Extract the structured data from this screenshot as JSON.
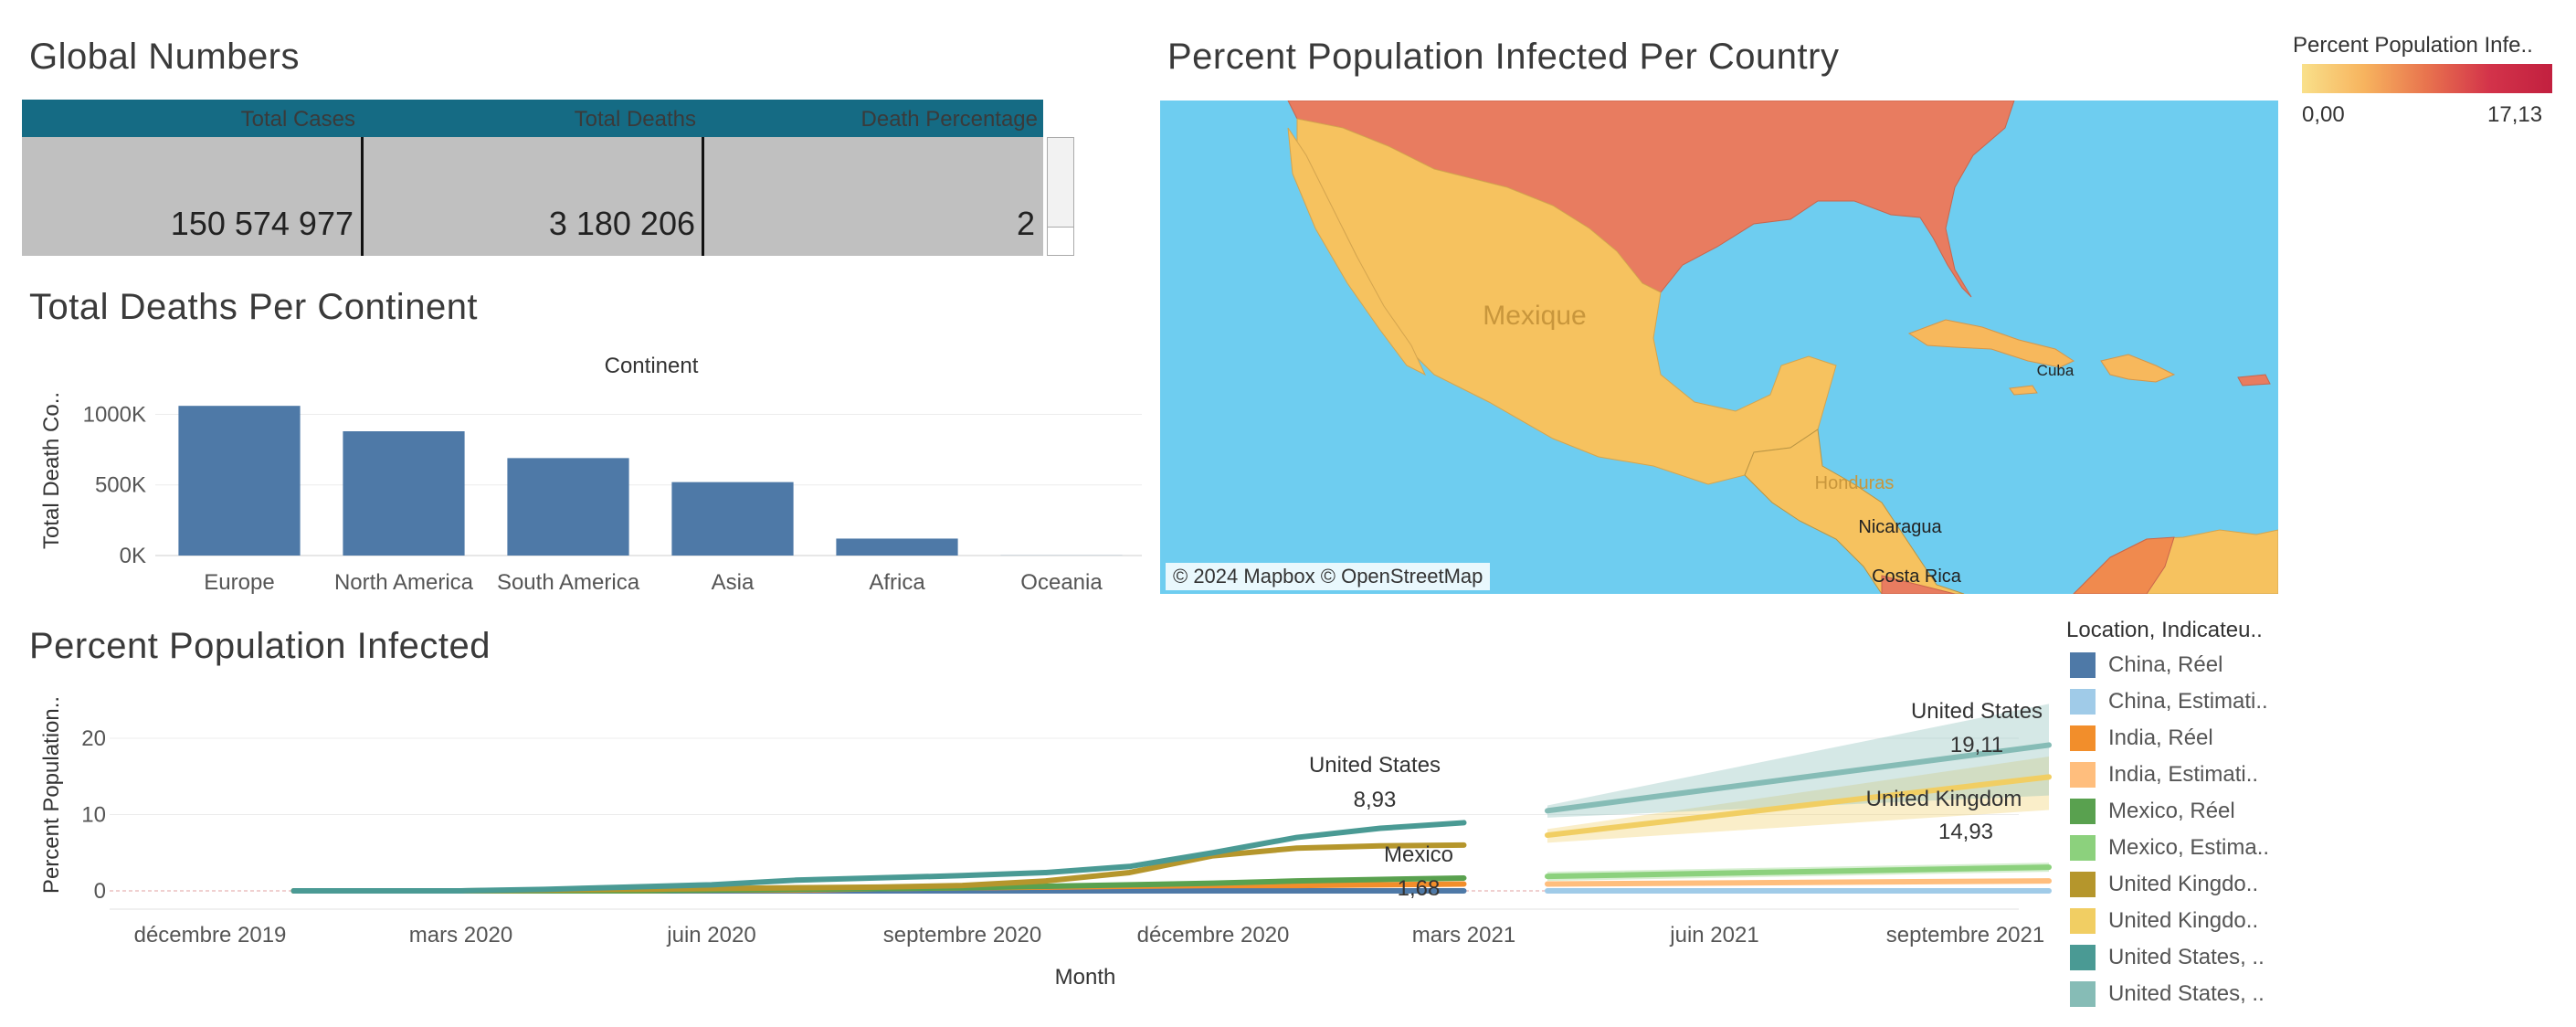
{
  "global_numbers": {
    "title": "Global Numbers",
    "headers": [
      "Total Cases",
      "Total Deaths",
      "Death Percentage"
    ],
    "values": [
      "150 574 977",
      "3 180 206",
      "2"
    ]
  },
  "map": {
    "title": "Percent Population Infected Per Country",
    "credit": "© 2024 Mapbox © OpenStreetMap",
    "labels": {
      "mexico": "Mexique",
      "cuba": "Cuba",
      "honduras": "Honduras",
      "nicaragua": "Nicaragua",
      "costa_rica": "Costa Rica"
    },
    "colors": {
      "water": "#6ecdf0",
      "usa": "#e87c60",
      "mexico": "#f6c25f",
      "caribbean": "#f7b85c",
      "venezuela": "#f08a4e"
    }
  },
  "color_legend": {
    "title": "Percent Population Infe..",
    "min": "0,00",
    "max": "17,13"
  },
  "chart_data": [
    {
      "type": "bar",
      "title": "Total Deaths Per Continent",
      "header": "Continent",
      "categories": [
        "Europe",
        "North America",
        "South America",
        "Asia",
        "Africa",
        "Oceania"
      ],
      "values": [
        1060000,
        880000,
        690000,
        520000,
        120000,
        1000
      ],
      "ylabel": "Total Death Co..",
      "yticks": [
        "1000K",
        "500K",
        "0K"
      ],
      "ytick_values": [
        1000000,
        500000,
        0
      ],
      "ylim": [
        0,
        1100000
      ],
      "color": "#4e79a7"
    },
    {
      "type": "line",
      "title": "Percent Population Infected",
      "xlabel": "Month",
      "ylabel": "Percent Population..",
      "yticks": [
        "20",
        "10",
        "0"
      ],
      "ytick_values": [
        20,
        10,
        0
      ],
      "ylim": [
        -2,
        25
      ],
      "xticks": [
        "décembre 2019",
        "mars 2020",
        "juin 2020",
        "septembre 2020",
        "décembre 2020",
        "mars 2021",
        "juin 2021",
        "septembre 2021"
      ],
      "xtick_months": [
        0,
        3,
        6,
        9,
        12,
        15,
        18,
        21
      ],
      "actual_months": [
        1,
        2,
        3,
        4,
        5,
        6,
        7,
        8,
        9,
        10,
        11,
        12,
        13,
        14,
        15
      ],
      "series": [
        {
          "name": "China, Réel",
          "color": "#4e79a7",
          "values": [
            0,
            0,
            0,
            0,
            0,
            0,
            0,
            0,
            0,
            0,
            0,
            0,
            0,
            0,
            0
          ]
        },
        {
          "name": "India, Réel",
          "color": "#f28e2b",
          "values": [
            0,
            0,
            0,
            0,
            0,
            0.1,
            0.1,
            0.3,
            0.4,
            0.5,
            0.6,
            0.7,
            0.7,
            0.8,
            0.9
          ]
        },
        {
          "name": "Mexico, Réel",
          "color": "#59a14f",
          "values": [
            0,
            0,
            0,
            0,
            0,
            0.1,
            0.2,
            0.3,
            0.4,
            0.6,
            0.8,
            1.0,
            1.3,
            1.5,
            1.68
          ]
        },
        {
          "name": "United Kingdo..",
          "color": "#b5962c",
          "values": [
            0,
            0,
            0,
            0.1,
            0.2,
            0.3,
            0.4,
            0.5,
            0.7,
            1.3,
            2.4,
            4.6,
            5.6,
            5.9,
            6.0
          ]
        },
        {
          "name": "United States, ..",
          "color": "#4a9a94",
          "values": [
            0,
            0,
            0,
            0.2,
            0.5,
            0.8,
            1.4,
            1.7,
            2.0,
            2.4,
            3.2,
            5.0,
            7.0,
            8.2,
            8.93
          ]
        }
      ],
      "forecast_months": [
        16,
        17,
        18,
        19,
        20,
        21,
        22
      ],
      "forecast": [
        {
          "name": "China, Estimati..",
          "color": "#a0cbe8",
          "from": 0,
          "to": 0,
          "band": 0.2
        },
        {
          "name": "India, Estimati..",
          "color": "#ffbe7d",
          "from": 0.9,
          "to": 1.3,
          "band": 0.3
        },
        {
          "name": "Mexico, Estima..",
          "color": "#8cd17d",
          "from": 1.9,
          "to": 3.1,
          "band": 0.6
        },
        {
          "name": "United Kingdo..",
          "color": "#f1ce63",
          "from": 7.3,
          "to": 14.93,
          "band_lo": [
            6.3,
            10.6
          ],
          "band_hi": [
            8.1,
            17.6
          ]
        },
        {
          "name": "United States, ..",
          "color": "#86bcb6",
          "from": 10.5,
          "to": 19.11,
          "band_lo": [
            9.6,
            12.5
          ],
          "band_hi": [
            11.2,
            24.5
          ]
        }
      ],
      "annotations": [
        {
          "label": "United States",
          "value": "8,93"
        },
        {
          "label": "Mexico",
          "value": "1,68"
        },
        {
          "label": "United States",
          "value": "19,11"
        },
        {
          "label": "United Kingdom",
          "value": "14,93"
        }
      ]
    }
  ],
  "line_legend": {
    "title": "Location, Indicateu..",
    "items": [
      {
        "label": "China, Réel",
        "color": "#4e79a7"
      },
      {
        "label": "China, Estimati..",
        "color": "#a0cbe8"
      },
      {
        "label": "India, Réel",
        "color": "#f28e2b"
      },
      {
        "label": "India, Estimati..",
        "color": "#ffbe7d"
      },
      {
        "label": "Mexico, Réel",
        "color": "#59a14f"
      },
      {
        "label": "Mexico, Estima..",
        "color": "#8cd17d"
      },
      {
        "label": "United Kingdo..",
        "color": "#b5962c"
      },
      {
        "label": "United Kingdo..",
        "color": "#f1ce63"
      },
      {
        "label": "United States, ..",
        "color": "#4a9a94"
      },
      {
        "label": "United States, ..",
        "color": "#86bcb6"
      }
    ]
  }
}
